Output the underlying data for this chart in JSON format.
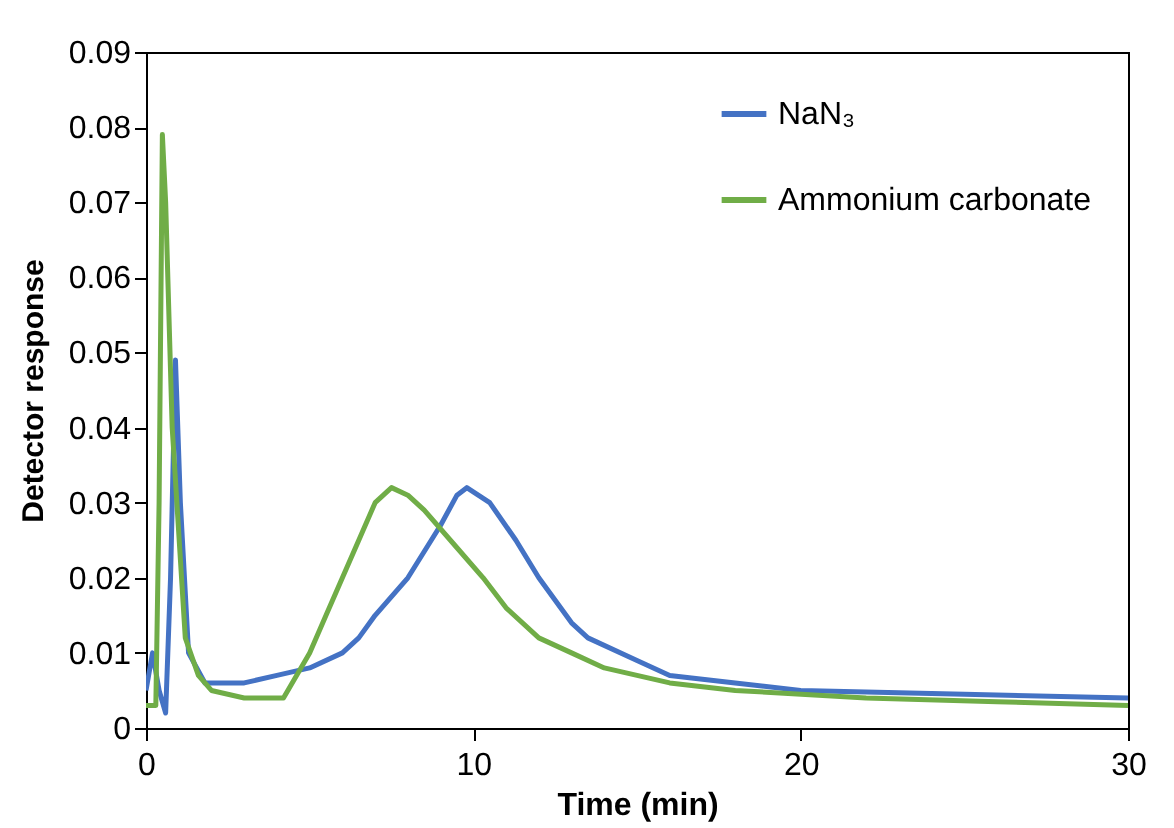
{
  "chart_data": {
    "type": "line",
    "xlabel": "Time (min)",
    "ylabel": "Detector response",
    "xlim": [
      0,
      30
    ],
    "xticks": [
      0,
      10,
      20,
      30
    ],
    "ylim": [
      0,
      0.09
    ],
    "yticks": [
      {
        "value": 0,
        "label": "0"
      },
      0.01,
      0.02,
      0.03,
      0.04,
      0.05,
      0.06,
      0.07,
      0.08,
      0.09
    ],
    "grid": false,
    "legend": "top right",
    "marker": "none",
    "line_style": "solid",
    "series": [
      {
        "name": "NaN₃",
        "color": "#4472c4",
        "x": [
          0,
          0.2,
          0.4,
          0.6,
          0.75,
          0.9,
          1.05,
          1.3,
          1.8,
          3,
          4,
          5,
          6,
          6.5,
          7,
          8,
          9,
          9.5,
          9.8,
          10.5,
          11.3,
          12,
          13,
          13.5,
          15,
          16,
          18,
          20,
          25,
          30
        ],
        "values": [
          0.005,
          0.01,
          0.005,
          0.002,
          0.02,
          0.049,
          0.03,
          0.01,
          0.006,
          0.006,
          0.007,
          0.008,
          0.01,
          0.012,
          0.015,
          0.02,
          0.027,
          0.031,
          0.032,
          0.03,
          0.025,
          0.02,
          0.014,
          0.012,
          0.009,
          0.007,
          0.006,
          0.005,
          0.0045,
          0.004
        ]
      },
      {
        "name": "Ammonium carbonate",
        "color": "#70ad47",
        "x": [
          0,
          0.3,
          0.4,
          0.5,
          0.6,
          0.8,
          1.2,
          1.6,
          2,
          3,
          4.2,
          5,
          5.5,
          6,
          6.5,
          7,
          7.5,
          8,
          8.5,
          9.5,
          10.3,
          11,
          12,
          13,
          14,
          16,
          18,
          22,
          26,
          30
        ],
        "values": [
          0.003,
          0.003,
          0.03,
          0.079,
          0.07,
          0.04,
          0.012,
          0.007,
          0.005,
          0.004,
          0.004,
          0.01,
          0.015,
          0.02,
          0.025,
          0.03,
          0.032,
          0.031,
          0.029,
          0.024,
          0.02,
          0.016,
          0.012,
          0.01,
          0.008,
          0.006,
          0.005,
          0.004,
          0.0035,
          0.003
        ]
      }
    ]
  }
}
